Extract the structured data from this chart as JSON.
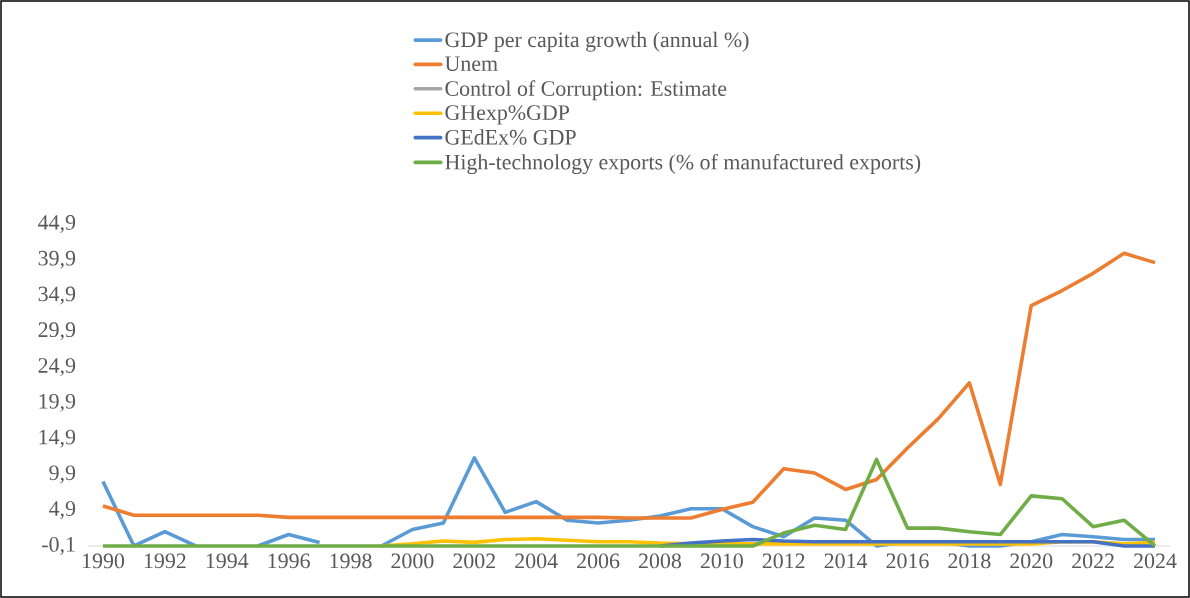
{
  "chart_data": {
    "type": "line",
    "categories": [
      "1990",
      null,
      "1992",
      null,
      "1994",
      null,
      "1996",
      null,
      "1998",
      null,
      "2000",
      null,
      "2002",
      null,
      "2004",
      null,
      "2006",
      null,
      "2008",
      null,
      "2010",
      null,
      "2012",
      null,
      "2014",
      null,
      "2016",
      null,
      "2018",
      null,
      "2020",
      null,
      "2022",
      null,
      "2024"
    ],
    "series": [
      {
        "name": "GDP per capita growth (annual %)",
        "color": "#5b9bd5",
        "values": [
          8.9,
          -0.1,
          1.9,
          -0.1,
          null,
          -0.1,
          1.5,
          0.4,
          null,
          -0.1,
          2.2,
          3.1,
          12.2,
          4.6,
          6.1,
          3.5,
          3.1,
          3.5,
          4.1,
          5.1,
          5.1,
          2.6,
          1.2,
          3.8,
          3.5,
          -0.1,
          0.5,
          0.5,
          -0.1,
          -0.1,
          0.5,
          1.5,
          1.2,
          0.8,
          0.8
        ]
      },
      {
        "name": "Unem",
        "color": "#ed7d31",
        "values": [
          5.5,
          4.2,
          4.2,
          4.2,
          4.2,
          4.2,
          3.9,
          3.9,
          3.9,
          3.9,
          3.9,
          3.9,
          3.9,
          3.9,
          3.9,
          3.9,
          3.9,
          3.8,
          3.8,
          3.8,
          5.0,
          6.0,
          10.7,
          10.1,
          7.8,
          9.2,
          13.6,
          17.7,
          22.7,
          8.5,
          33.5,
          35.6,
          38.0,
          40.8,
          39.5
        ]
      },
      {
        "name": "Control of Corruption: Estimate",
        "color": "#a5a5a5",
        "values": [
          null,
          null,
          null,
          null,
          null,
          null,
          null,
          null,
          null,
          null,
          null,
          null,
          null,
          null,
          null,
          null,
          null,
          null,
          null,
          null,
          null,
          null,
          null,
          null,
          null,
          null,
          null,
          null,
          null,
          null,
          null,
          null,
          null,
          null,
          null
        ]
      },
      {
        "name": "GHexp%GDP",
        "color": "#ffc000",
        "values": [
          null,
          null,
          null,
          null,
          null,
          null,
          null,
          null,
          null,
          -0.1,
          0.2,
          0.6,
          0.4,
          0.8,
          0.9,
          0.7,
          0.5,
          0.5,
          0.3,
          0.2,
          0.2,
          0.2,
          0.2,
          0.2,
          0.2,
          0.2,
          0.2,
          0.2,
          0.2,
          0.2,
          0.2,
          0.5,
          0.5,
          0.2,
          0.4
        ]
      },
      {
        "name": "GEdEx% GDP",
        "color": "#4472c4",
        "values": [
          null,
          null,
          null,
          null,
          null,
          null,
          null,
          null,
          null,
          null,
          null,
          null,
          null,
          null,
          null,
          null,
          null,
          null,
          -0.1,
          0.3,
          0.6,
          0.8,
          0.6,
          0.5,
          0.5,
          0.5,
          0.5,
          0.5,
          0.5,
          0.5,
          0.5,
          0.5,
          0.5,
          -0.1,
          -0.1
        ]
      },
      {
        "name": "High-technology exports (% of manufactured exports)",
        "color": "#70ad47",
        "values": [
          -0.1,
          -0.1,
          -0.1,
          -0.1,
          -0.1,
          -0.1,
          -0.1,
          -0.1,
          -0.1,
          -0.1,
          -0.1,
          -0.1,
          -0.1,
          -0.1,
          -0.1,
          -0.1,
          -0.1,
          -0.1,
          -0.1,
          -0.1,
          -0.1,
          -0.1,
          1.7,
          2.8,
          2.2,
          12.0,
          2.4,
          2.4,
          1.9,
          1.5,
          6.9,
          6.5,
          2.6,
          3.5,
          -0.1
        ]
      }
    ],
    "ylim": [
      -0.1,
      44.9
    ],
    "yticks": [
      {
        "value": -0.1,
        "label": "-0,1"
      },
      {
        "value": 4.9,
        "label": "4,9"
      },
      {
        "value": 9.9,
        "label": "9,9"
      },
      {
        "value": 14.9,
        "label": "14,9"
      },
      {
        "value": 19.9,
        "label": "19,9"
      },
      {
        "value": 24.9,
        "label": "24,9"
      },
      {
        "value": 29.9,
        "label": "29,9"
      },
      {
        "value": 34.9,
        "label": "34,9"
      },
      {
        "value": 39.9,
        "label": "39,9"
      },
      {
        "value": 44.9,
        "label": "44,9"
      }
    ],
    "legend": "top",
    "marker": "none",
    "line_style": "solid"
  }
}
